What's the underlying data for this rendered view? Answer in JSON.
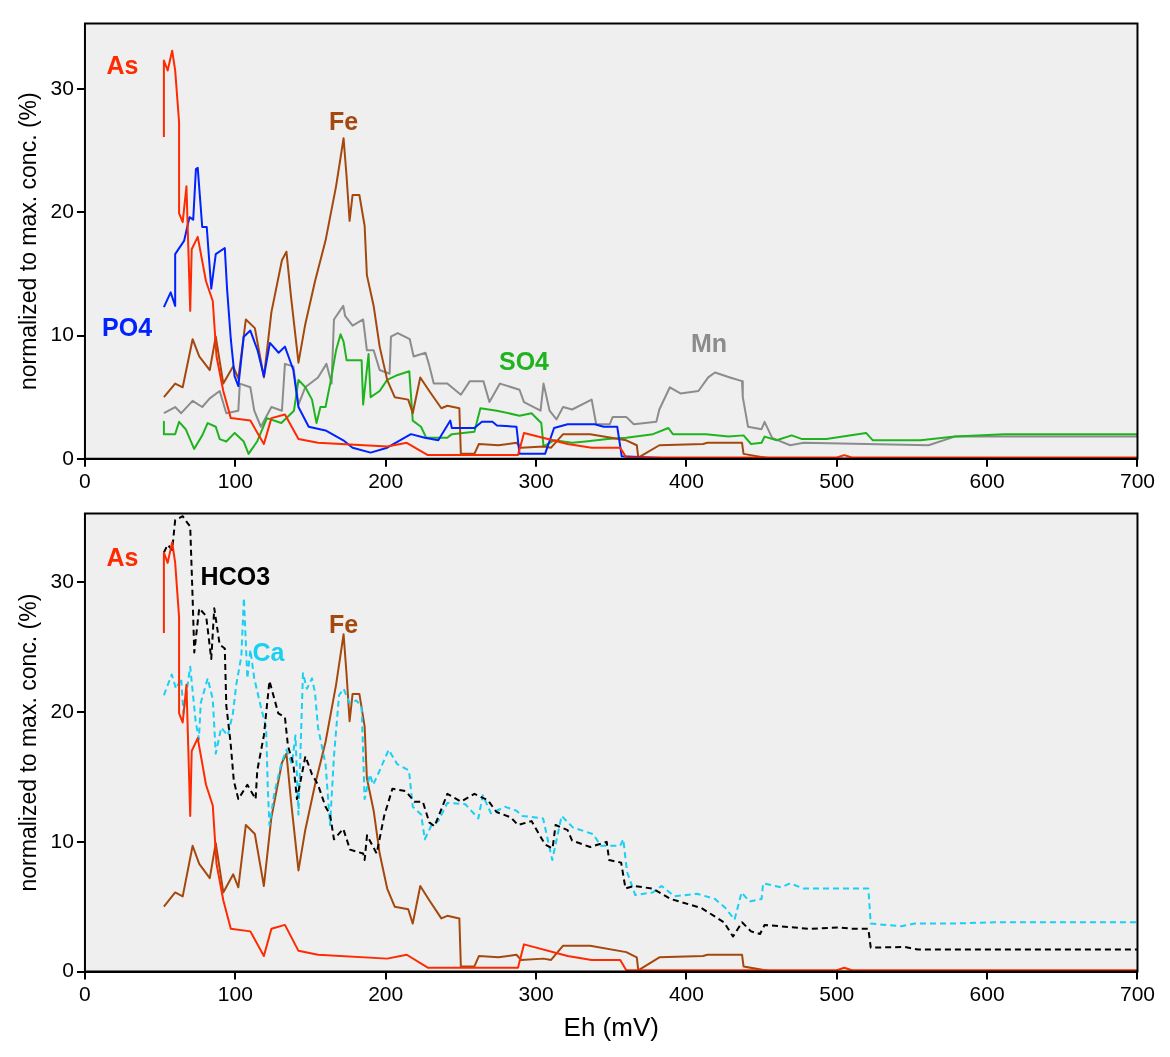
{
  "chart_data": [
    {
      "type": "line",
      "ylabel": "normalized to max. conc. (%)",
      "xlim": [
        0,
        700
      ],
      "xticks": [
        0,
        100,
        200,
        300,
        400,
        500,
        600,
        700
      ],
      "ylim": [
        0,
        35.3
      ],
      "yticks": [
        0,
        10,
        20,
        30
      ],
      "series": [
        {
          "name": "As",
          "color": "#ff2a00",
          "x": [
            52.5,
            52.5,
            55,
            58,
            60,
            62.6,
            62.6,
            65,
            67.5,
            70,
            71,
            75,
            80.5,
            85,
            87.5,
            92,
            97,
            110,
            119,
            124,
            133,
            142,
            155,
            201,
            214,
            228,
            288,
            292,
            321,
            337,
            356,
            360,
            500,
            505,
            510,
            700
          ],
          "values": [
            26.1,
            32.3,
            31.5,
            33.1,
            31.5,
            27.3,
            19.9,
            19.2,
            22.1,
            12,
            17,
            18,
            14.4,
            12.8,
            8.3,
            5.5,
            3.3,
            3.1,
            1.2,
            3.3,
            3.6,
            1.6,
            1.3,
            1.0,
            1.3,
            0.3,
            0.3,
            2.1,
            1.2,
            0.9,
            0.9,
            0.1,
            0.1,
            0.3,
            0.1,
            0.1
          ]
        },
        {
          "name": "PO4",
          "color": "#0022ff",
          "x": [
            52.5,
            57,
            60,
            60,
            66,
            69.5,
            72,
            73.8,
            75,
            78,
            81,
            84,
            87,
            93,
            94.5,
            97,
            99.5,
            102,
            105.6,
            110,
            114.8,
            119,
            123,
            128.8,
            133,
            138.6,
            142,
            148.8,
            160,
            171.8,
            178,
            190,
            201,
            216.8,
            226,
            235,
            243,
            244,
            259,
            264,
            271,
            274,
            287,
            289,
            306,
            312,
            321,
            339,
            345,
            354,
            357,
            395,
            700
          ],
          "values": [
            12.3,
            13.5,
            12.4,
            16.6,
            17.7,
            19.6,
            19.4,
            23.5,
            23.6,
            18.8,
            18.8,
            13.8,
            16.6,
            17.1,
            13.8,
            9.7,
            6.7,
            5.9,
            9.9,
            10.4,
            8.8,
            6.7,
            9.4,
            8.6,
            9.1,
            7.2,
            4.2,
            2.6,
            2.3,
            1.5,
            0.9,
            0.5,
            0.9,
            2.0,
            1.7,
            1.5,
            3.1,
            2.5,
            2.5,
            3.0,
            3.0,
            2.7,
            2.6,
            0.4,
            0.4,
            2.5,
            2.8,
            2.8,
            2.6,
            2.6,
            0.2,
            0,
            0
          ]
        },
        {
          "name": "Fe",
          "color": "#a4480e",
          "x": [
            52.5,
            60,
            65,
            71.6,
            76,
            83,
            87,
            92,
            98.6,
            102,
            107,
            113,
            119,
            124,
            131,
            134,
            137,
            142,
            146.5,
            153,
            160,
            167,
            172,
            174,
            176,
            178,
            182.5,
            186,
            187.5,
            192,
            196,
            201,
            206,
            215,
            218,
            223,
            229,
            237,
            241,
            249,
            250,
            259,
            262,
            275,
            287,
            290,
            305,
            310,
            318,
            336,
            360,
            367,
            368,
            382,
            411,
            414,
            437,
            438,
            457,
            700
          ],
          "values": [
            5.0,
            6.1,
            5.8,
            9.7,
            8.3,
            7.2,
            9.9,
            6.1,
            7.5,
            6.5,
            11.3,
            10.6,
            6.6,
            11.9,
            16.1,
            16.8,
            13.2,
            7.8,
            10.9,
            14.4,
            17.7,
            22.1,
            26,
            22.9,
            19.3,
            21.4,
            21.4,
            18.9,
            14.9,
            12.4,
            9.1,
            6.4,
            5.0,
            4.8,
            3.7,
            6.6,
            5.5,
            4.1,
            4.3,
            4.1,
            0.4,
            0.4,
            1.2,
            1.1,
            1.3,
            0.9,
            1.0,
            0.9,
            2.0,
            2.0,
            1.5,
            1.1,
            0.1,
            1.1,
            1.2,
            1.3,
            1.3,
            0.4,
            0,
            0
          ]
        },
        {
          "name": "SO4",
          "color": "#1fb41f",
          "x": [
            52.5,
            52.5,
            60,
            62.6,
            67,
            72.6,
            78,
            81.6,
            87,
            89.6,
            94,
            99.6,
            105.6,
            108.8,
            114.5,
            121,
            130.6,
            139,
            142,
            146.6,
            151,
            154,
            156.6,
            160,
            163.6,
            167,
            170,
            172,
            174,
            184,
            185,
            188.6,
            190,
            196,
            201,
            208,
            215.7,
            218,
            223.5,
            227,
            241,
            244,
            259,
            263,
            274,
            289,
            297,
            303.5,
            305,
            312,
            324,
            333,
            347.6,
            360,
            377.8,
            388,
            391,
            413,
            428,
            438,
            443,
            450,
            452,
            460,
            470,
            477,
            493,
            519.5,
            524,
            555.7,
            578.5,
            611.5,
            700
          ],
          "values": [
            3.0,
            2.0,
            2.0,
            3.0,
            2.4,
            0.8,
            1.9,
            2.9,
            2.6,
            1.6,
            1.4,
            2.1,
            1.4,
            0.4,
            1.4,
            3.3,
            2.9,
            3.9,
            6.4,
            5.8,
            4.8,
            2.9,
            4.2,
            4.2,
            6.4,
            8.8,
            10.1,
            9.5,
            8.0,
            8.0,
            4.4,
            8.5,
            5.0,
            5.5,
            6.4,
            6.8,
            7.1,
            3.1,
            2.6,
            1.7,
            1.7,
            2.0,
            2.2,
            4.1,
            3.9,
            3.5,
            3.7,
            2.9,
            1.0,
            1.5,
            1.3,
            1.4,
            1.6,
            1.7,
            2.0,
            2.5,
            2.0,
            2.0,
            1.8,
            1.9,
            1.2,
            1.3,
            1.8,
            1.5,
            1.9,
            1.6,
            1.6,
            2.1,
            1.5,
            1.5,
            1.8,
            2.0,
            2.0
          ]
        },
        {
          "name": "Mn",
          "color": "#8c8c8c",
          "x": [
            52.5,
            60,
            64,
            71.6,
            78,
            83,
            89.6,
            94,
            102,
            103,
            110,
            112.6,
            117,
            124,
            131,
            133,
            138.6,
            142,
            146.5,
            155,
            160.6,
            164,
            165.6,
            171.8,
            173,
            178,
            185,
            187.5,
            192,
            196,
            202.6,
            203.5,
            208,
            216,
            218.6,
            226.5,
            228.7,
            232,
            241,
            250,
            256,
            265,
            269,
            276,
            289,
            292,
            303,
            305,
            309,
            313.6,
            318,
            324,
            337,
            340,
            349,
            351,
            360,
            365,
            380,
            382,
            389,
            396,
            408,
            414.5,
            419,
            429,
            437,
            437.5,
            441,
            450,
            452,
            457,
            469,
            478,
            561,
            578.5,
            700
          ],
          "values": [
            3.7,
            4.2,
            3.7,
            4.7,
            4.2,
            4.9,
            5.5,
            3.7,
            3.9,
            6.1,
            5.8,
            3.9,
            2.6,
            4.2,
            3.9,
            7.7,
            7.5,
            4.4,
            5.8,
            6.6,
            7.7,
            6.1,
            11.3,
            12.4,
            11.6,
            10.8,
            11.3,
            8.8,
            8.8,
            7.2,
            6.9,
            9.9,
            10.2,
            9.7,
            8.3,
            8.6,
            7.7,
            6.1,
            6.1,
            5.2,
            6.3,
            6.3,
            4.6,
            6.1,
            5.6,
            4.6,
            3.9,
            6.1,
            3.9,
            3.2,
            4.2,
            4.0,
            4.8,
            2.8,
            2.8,
            3.4,
            3.4,
            2.8,
            3.0,
            4.0,
            5.8,
            5.3,
            5.5,
            6.6,
            7.0,
            6.6,
            6.3,
            5.0,
            2.6,
            2.4,
            3.0,
            1.7,
            1.1,
            1.3,
            1.1,
            1.8,
            1.8
          ]
        }
      ]
    },
    {
      "type": "line",
      "xlabel": "Eh (mV)",
      "ylabel": "normalized to max. conc. (%)",
      "xlim": [
        0,
        700
      ],
      "xticks": [
        0,
        100,
        200,
        300,
        400,
        500,
        600,
        700
      ],
      "ylim": [
        0,
        35.3
      ],
      "yticks": [
        0,
        10,
        20,
        30
      ],
      "series": [
        {
          "name": "As",
          "color": "#ff2a00",
          "x": [
            52.5,
            52.5,
            55,
            58,
            60,
            62.6,
            62.6,
            65,
            67.5,
            70,
            71,
            75,
            80.5,
            85,
            87.5,
            92,
            97,
            110,
            119,
            124,
            133,
            142,
            155,
            201,
            214,
            228,
            288,
            292,
            321,
            337,
            356,
            360,
            500,
            505,
            510,
            700
          ],
          "values": [
            26.1,
            32.3,
            31.5,
            33.1,
            31.5,
            27.3,
            19.9,
            19.2,
            22.1,
            12,
            17,
            18,
            14.4,
            12.8,
            8.3,
            5.5,
            3.3,
            3.1,
            1.2,
            3.3,
            3.6,
            1.6,
            1.3,
            1.0,
            1.3,
            0.3,
            0.3,
            2.1,
            1.2,
            0.9,
            0.9,
            0.1,
            0.1,
            0.3,
            0.1,
            0.1
          ]
        },
        {
          "name": "HCO3",
          "color": "#000000",
          "line_style": "dashed",
          "x": [
            52.5,
            55,
            58,
            60,
            65,
            68,
            70,
            71.6,
            72.7,
            76,
            80.6,
            84,
            86,
            89.6,
            93,
            94,
            96.8,
            99,
            102,
            108,
            113.5,
            114.6,
            119,
            122.7,
            126,
            128.6,
            133,
            135,
            138.6,
            141,
            146.6,
            151,
            155,
            160,
            163,
            165.6,
            171.8,
            176.3,
            185,
            186,
            187.6,
            194,
            199,
            204.5,
            213.5,
            219,
            224.7,
            229,
            232.5,
            238,
            241,
            250,
            259,
            268,
            273.7,
            283,
            288,
            297,
            306,
            311,
            313,
            321,
            324,
            336,
            347,
            348.6,
            356.6,
            359.5,
            365,
            377.6,
            389.5,
            410,
            425,
            431,
            437,
            443,
            449,
            452,
            472,
            481,
            502,
            510,
            521,
            522.6,
            545,
            554,
            700
          ],
          "values": [
            32.3,
            32.9,
            32.5,
            34.8,
            35.1,
            34.6,
            34.3,
            28.8,
            24.6,
            28.0,
            27.4,
            24.1,
            28.0,
            25.2,
            24.9,
            20.5,
            17.7,
            14.7,
            13.3,
            14.4,
            13.3,
            15.5,
            18.2,
            22.4,
            21.0,
            19.9,
            19.6,
            17.4,
            16.0,
            13.3,
            16.6,
            15.2,
            14.4,
            12.7,
            12.1,
            10.2,
            11.0,
            9.4,
            9.1,
            8.6,
            10.5,
            9.1,
            12.0,
            14.1,
            13.9,
            13.1,
            13.1,
            11.5,
            11.2,
            12.8,
            13.7,
            13.1,
            13.7,
            13.2,
            12.3,
            11.9,
            11.3,
            11.6,
            9.8,
            9.5,
            11.3,
            10.9,
            10.1,
            9.6,
            10.0,
            8.6,
            8.4,
            6.4,
            6.6,
            6.4,
            5.6,
            4.9,
            3.8,
            2.7,
            3.8,
            3.1,
            2.9,
            3.6,
            3.4,
            3.3,
            3.4,
            3.3,
            3.3,
            1.85,
            1.9,
            1.7,
            1.7
          ]
        },
        {
          "name": "Ca",
          "color": "#19cff3",
          "line_style": "dashed",
          "x": [
            52.5,
            57.7,
            60.6,
            64,
            65.5,
            70,
            73.6,
            75.8,
            77,
            81.6,
            85,
            87,
            90.6,
            95,
            98.4,
            100.6,
            104,
            105.7,
            108,
            110,
            112.6,
            117,
            120.5,
            121.6,
            122.7,
            126,
            130.5,
            134,
            137.6,
            140,
            142,
            145,
            147.6,
            151,
            153,
            155,
            160,
            163,
            165.6,
            169,
            172,
            176,
            180.5,
            184,
            186,
            189.5,
            191.7,
            196,
            202,
            207.6,
            215.5,
            218,
            223.6,
            226,
            230.5,
            235,
            241,
            253,
            261.6,
            264.6,
            270,
            279.5,
            287,
            291,
            304.7,
            310.8,
            317,
            324.6,
            338,
            343,
            356,
            358,
            360.5,
            366,
            377.6,
            383.5,
            392,
            407,
            419,
            426,
            432,
            436.7,
            442,
            450,
            451,
            463,
            469,
            478,
            521,
            522.6,
            543,
            552,
            576,
            605,
            700
          ],
          "values": [
            21.3,
            22.9,
            21.8,
            22.6,
            19.9,
            23.5,
            19.3,
            17.9,
            20.7,
            22.6,
            21.0,
            16.8,
            18.8,
            18.2,
            19.9,
            22.1,
            24.3,
            28.8,
            22.6,
            24.8,
            22.6,
            20.4,
            18.8,
            14.1,
            11.3,
            13.8,
            16.0,
            17.1,
            16.0,
            18.2,
            12.1,
            23.0,
            21.8,
            22.6,
            21.5,
            18.8,
            16.0,
            11.3,
            16.6,
            21.3,
            21.8,
            20.7,
            20.9,
            20.4,
            13.3,
            15.2,
            14.4,
            15.5,
            17.1,
            16.0,
            15.5,
            12.7,
            12.1,
            10.2,
            11.3,
            11.6,
            13.0,
            12.9,
            11.8,
            13.6,
            12.2,
            12.7,
            12.4,
            12.0,
            11.8,
            8.6,
            12.0,
            11.1,
            10.6,
            9.7,
            9.7,
            10.2,
            7.7,
            5.9,
            6.1,
            6.6,
            5.8,
            6.0,
            5.6,
            4.9,
            4.0,
            6.1,
            5.4,
            5.6,
            6.8,
            6.5,
            6.8,
            6.4,
            6.4,
            3.7,
            3.5,
            3.7,
            3.7,
            3.8,
            3.8
          ]
        },
        {
          "name": "Fe",
          "color": "#a4480e",
          "x": [
            52.5,
            60,
            65,
            71.6,
            76,
            83,
            87,
            92,
            98.6,
            102,
            107,
            113,
            119,
            124,
            131,
            134,
            137,
            142,
            146.5,
            153,
            160,
            167,
            172,
            174,
            176,
            178,
            182.5,
            186,
            187.5,
            192,
            196,
            201,
            206,
            215,
            218,
            223,
            229,
            237,
            241,
            249,
            250,
            259,
            262,
            275,
            287,
            290,
            305,
            310,
            318,
            336,
            360,
            367,
            368,
            382,
            411,
            414,
            437,
            438,
            457,
            700
          ],
          "values": [
            5.0,
            6.1,
            5.8,
            9.7,
            8.3,
            7.2,
            9.9,
            6.1,
            7.5,
            6.5,
            11.3,
            10.6,
            6.6,
            11.9,
            16.1,
            16.8,
            13.2,
            7.8,
            10.9,
            14.4,
            17.7,
            22.1,
            26,
            22.9,
            19.3,
            21.4,
            21.4,
            18.9,
            14.9,
            12.4,
            9.1,
            6.4,
            5.0,
            4.8,
            3.7,
            6.6,
            5.5,
            4.1,
            4.3,
            4.1,
            0.4,
            0.4,
            1.2,
            1.1,
            1.3,
            0.9,
            1.0,
            0.9,
            2.0,
            2.0,
            1.5,
            1.1,
            0.1,
            1.1,
            1.2,
            1.3,
            1.3,
            0.4,
            0,
            0
          ]
        }
      ]
    }
  ]
}
